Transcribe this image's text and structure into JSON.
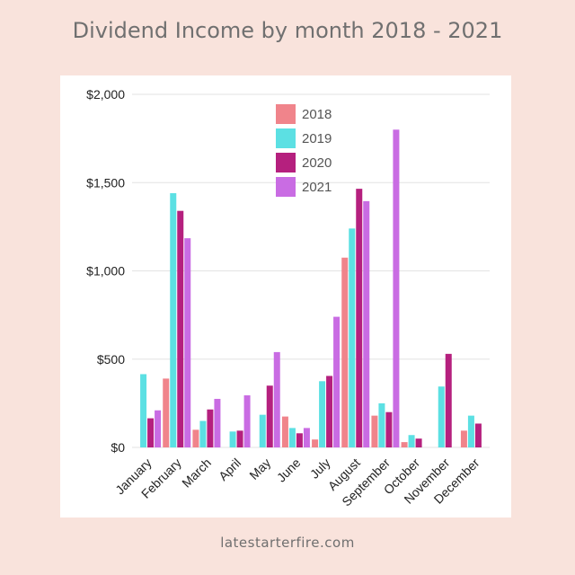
{
  "page": {
    "title": "Dividend Income by month 2018 - 2021",
    "footer": "latestarterfire.com"
  },
  "colors": {
    "background": "#f9e3dc",
    "card": "#ffffff",
    "grid": "#e3e3e3",
    "axis_text": "#222222"
  },
  "chart_data": {
    "type": "bar",
    "title": "Dividend Income by month 2018 - 2021",
    "xlabel": "",
    "ylabel": "",
    "categories": [
      "January",
      "February",
      "March",
      "April",
      "May",
      "June",
      "July",
      "August",
      "September",
      "October",
      "November",
      "December"
    ],
    "ylim": [
      0,
      2000
    ],
    "yticks": [
      0,
      500,
      1000,
      1500,
      2000
    ],
    "ytick_labels": [
      "$0",
      "$500",
      "$1,000",
      "$1,500",
      "$2,000"
    ],
    "grid": true,
    "legend": "top-center",
    "series": [
      {
        "name": "2018",
        "color": "#f0848b",
        "values": [
          0,
          390,
          100,
          0,
          0,
          175,
          45,
          1075,
          180,
          30,
          0,
          95
        ]
      },
      {
        "name": "2019",
        "color": "#5ce0e3",
        "values": [
          415,
          1440,
          150,
          90,
          185,
          110,
          375,
          1240,
          250,
          70,
          345,
          180
        ]
      },
      {
        "name": "2020",
        "color": "#b5207e",
        "values": [
          165,
          1340,
          215,
          95,
          350,
          80,
          405,
          1465,
          200,
          50,
          530,
          135
        ]
      },
      {
        "name": "2021",
        "color": "#c96ce3",
        "values": [
          210,
          1185,
          275,
          295,
          540,
          110,
          740,
          1395,
          1800,
          0,
          0,
          0
        ]
      }
    ]
  }
}
